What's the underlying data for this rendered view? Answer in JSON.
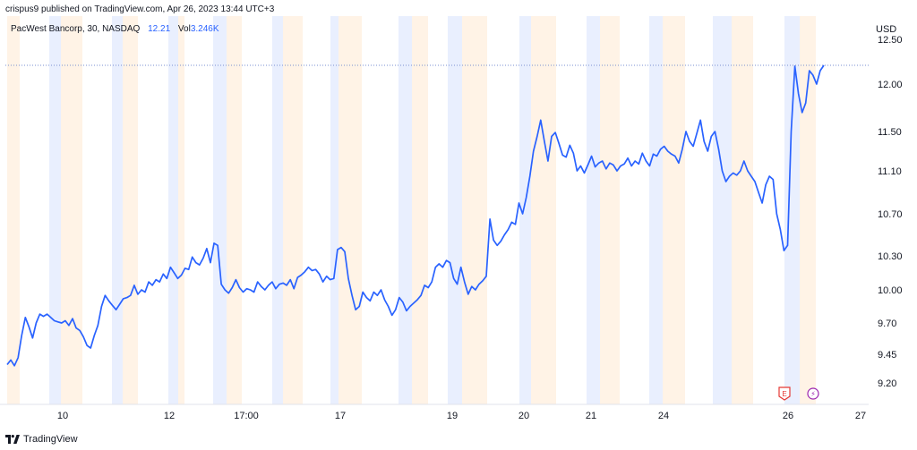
{
  "header": {
    "text": "crispus9 published on TradingView.com, Apr 26, 2023 13:44 UTC+3"
  },
  "legend": {
    "symbol": "PacWest Bancorp, 30, NASDAQ",
    "price": "12.21",
    "vol_label": "Vol",
    "vol_value": "3.246K"
  },
  "footer": {
    "brand": "TradingView"
  },
  "colors": {
    "line": "#2962ff",
    "band_premarket": "#e9effe",
    "band_afterhours": "#fff3e6",
    "text": "#131722",
    "earnings": "#e53935",
    "dividend": "#9c27b0",
    "pricelevel": "#7a8fd0"
  },
  "chart_data": {
    "type": "line",
    "title": "PacWest Bancorp, 30, NASDAQ",
    "currency_label": "USD",
    "y_ticks": [
      "12.50",
      "12.00",
      "11.50",
      "11.10",
      "10.70",
      "10.30",
      "10.00",
      "9.70",
      "9.45",
      "9.20"
    ],
    "x_ticks": [
      "10",
      "12",
      "17:00",
      "17",
      "19",
      "20",
      "21",
      "24",
      "26",
      "27"
    ],
    "last_price": 12.21,
    "events": [
      {
        "type": "earnings",
        "label": "E"
      },
      {
        "type": "dividend",
        "label": "⚡"
      }
    ],
    "series": [
      {
        "values": [
          9.36,
          9.4,
          9.35,
          9.42,
          9.6,
          9.75,
          9.67,
          9.58,
          9.7,
          9.78,
          9.76,
          9.78,
          9.75,
          9.72,
          9.71,
          9.7,
          9.72,
          9.68,
          9.74,
          9.66,
          9.64,
          9.59,
          9.52,
          9.5,
          9.6,
          9.68,
          9.85,
          9.95,
          9.9,
          9.86,
          9.82,
          9.87,
          9.92,
          9.93,
          9.95,
          10.04,
          9.96,
          10.0,
          9.98,
          10.07,
          10.04,
          10.09,
          10.07,
          10.14,
          10.1,
          10.2,
          10.15,
          10.1,
          10.13,
          10.19,
          10.18,
          10.29,
          10.24,
          10.22,
          10.28,
          10.37,
          10.24,
          10.42,
          10.4,
          10.05,
          10.0,
          9.97,
          10.02,
          10.09,
          10.02,
          9.98,
          10.01,
          10.0,
          9.98,
          10.07,
          10.03,
          10.0,
          10.04,
          10.07,
          10.01,
          10.05,
          10.06,
          10.04,
          10.09,
          10.01,
          10.11,
          10.13,
          10.16,
          10.2,
          10.17,
          10.18,
          10.14,
          10.07,
          10.12,
          10.09,
          10.1,
          10.36,
          10.38,
          10.34,
          10.1,
          9.95,
          9.82,
          9.85,
          9.98,
          9.93,
          9.9,
          9.98,
          9.95,
          10.0,
          9.91,
          9.85,
          9.77,
          9.82,
          9.93,
          9.89,
          9.81,
          9.85,
          9.88,
          9.91,
          9.95,
          10.04,
          10.02,
          10.07,
          10.2,
          10.23,
          10.2,
          10.26,
          10.24,
          10.1,
          10.05,
          10.2,
          10.07,
          9.96,
          10.03,
          10.0,
          10.05,
          10.08,
          10.12,
          10.65,
          10.45,
          10.4,
          10.44,
          10.5,
          10.55,
          10.62,
          10.6,
          10.8,
          10.7,
          10.85,
          11.05,
          11.3,
          11.45,
          11.62,
          11.4,
          11.2,
          11.45,
          11.49,
          11.38,
          11.26,
          11.24,
          11.36,
          11.28,
          11.1,
          11.15,
          11.08,
          11.16,
          11.25,
          11.14,
          11.18,
          11.2,
          11.12,
          11.18,
          11.16,
          11.1,
          11.15,
          11.17,
          11.23,
          11.15,
          11.2,
          11.17,
          11.28,
          11.2,
          11.15,
          11.27,
          11.25,
          11.32,
          11.35,
          11.3,
          11.27,
          11.25,
          11.18,
          11.32,
          11.5,
          11.4,
          11.35,
          11.48,
          11.62,
          11.4,
          11.3,
          11.45,
          11.5,
          11.32,
          11.1,
          11.0,
          11.05,
          11.08,
          11.06,
          11.1,
          11.2,
          11.1,
          11.05,
          11.0,
          10.9,
          10.8,
          10.97,
          11.05,
          11.02,
          10.7,
          10.55,
          10.35,
          10.4,
          11.5,
          12.2,
          11.9,
          11.7,
          11.8,
          12.15,
          12.1,
          12.0,
          12.15,
          12.21
        ]
      }
    ]
  }
}
